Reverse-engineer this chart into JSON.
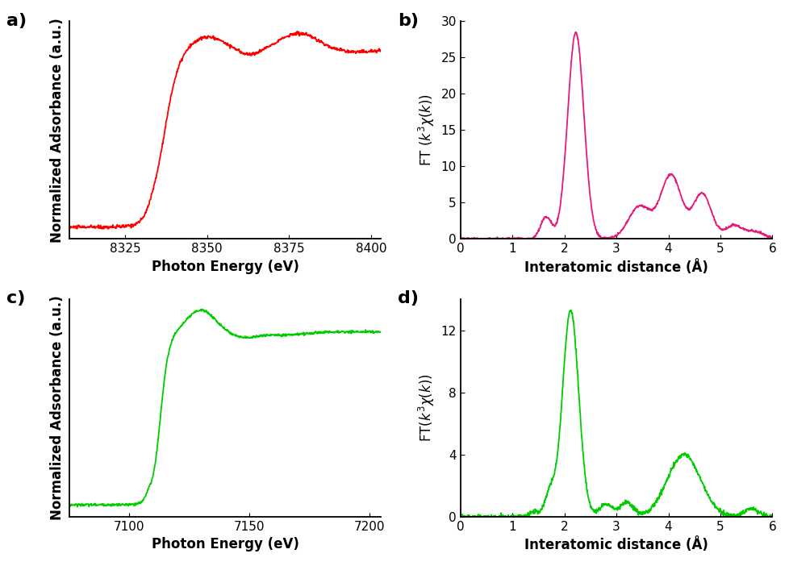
{
  "panel_a": {
    "label": "a)",
    "xlabel": "Photon Energy (eV)",
    "ylabel": "Normalized Adsorbance (a.u.)",
    "color": "#FF0000",
    "xlim": [
      8308,
      8403
    ],
    "xticks": [
      8325,
      8350,
      8375,
      8400
    ],
    "linewidth": 1.3
  },
  "panel_b": {
    "label": "b)",
    "xlabel": "Interatomic distance (Å)",
    "ylabel": "FT ($k^{3}\\chi$($k$))",
    "color": "#E8197A",
    "xlim": [
      0,
      6
    ],
    "ylim": [
      0,
      30
    ],
    "yticks": [
      0,
      5,
      10,
      15,
      20,
      25,
      30
    ],
    "xticks": [
      0,
      1,
      2,
      3,
      4,
      5,
      6
    ],
    "linewidth": 1.3
  },
  "panel_c": {
    "label": "c)",
    "xlabel": "Photon Energy (eV)",
    "ylabel": "Normalized Adsorbance (a.u.)",
    "color": "#00CC00",
    "xlim": [
      7075,
      7205
    ],
    "xticks": [
      7100,
      7150,
      7200
    ],
    "linewidth": 1.3
  },
  "panel_d": {
    "label": "d)",
    "xlabel": "Interatomic distance (Å)",
    "ylabel": "FT($k^{3}\\chi$($k$))",
    "color": "#00CC00",
    "xlim": [
      0,
      6
    ],
    "ylim": [
      0,
      14
    ],
    "yticks": [
      0,
      4,
      8,
      12
    ],
    "xticks": [
      0,
      1,
      2,
      3,
      4,
      5,
      6
    ],
    "linewidth": 1.3
  },
  "background_color": "#ffffff",
  "label_fontsize": 16,
  "tick_fontsize": 11,
  "axis_label_fontsize": 12
}
